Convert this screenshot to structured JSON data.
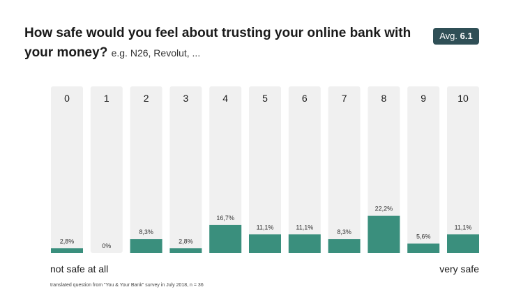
{
  "title": "How safe would you feel about trusting your online bank with your money?",
  "subtitle": "e.g. N26, Revolut, ...",
  "average": {
    "label": "Avg.",
    "value": "6.1"
  },
  "left_label": "not safe at all",
  "right_label": "very safe",
  "footnote": "translated question from \"You & Your Bank\" survey in July 2018, n = 36",
  "colors": {
    "bar_fill": "#3a8f7d",
    "bar_track": "#f0f0f0",
    "badge": "#2f4f56"
  },
  "chart_data": {
    "type": "bar",
    "categories": [
      "0",
      "1",
      "2",
      "3",
      "4",
      "5",
      "6",
      "7",
      "8",
      "9",
      "10"
    ],
    "values": [
      2.8,
      0,
      8.3,
      2.8,
      16.7,
      11.1,
      11.1,
      8.3,
      22.2,
      5.6,
      11.1
    ],
    "value_labels": [
      "2,8%",
      "0%",
      "8,3%",
      "2,8%",
      "16,7%",
      "11,1%",
      "11,1%",
      "8,3%",
      "22,2%",
      "5,6%",
      "11,1%"
    ],
    "title": "How safe would you feel about trusting your online bank with your money?",
    "xlabel": "",
    "ylabel": "",
    "grid": false,
    "legend": "none"
  }
}
